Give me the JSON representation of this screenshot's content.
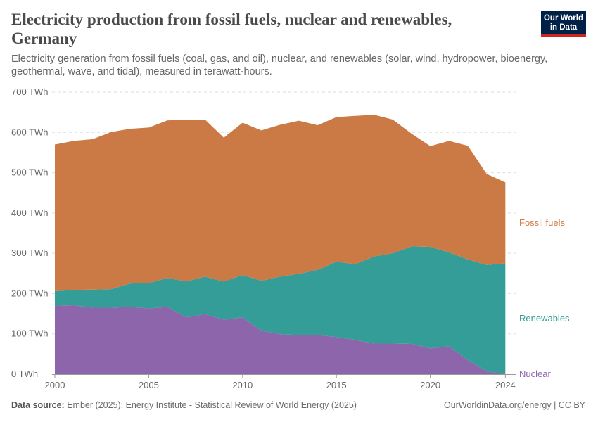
{
  "header": {
    "title": "Electricity production from fossil fuels, nuclear and renewables, Germany",
    "subtitle": "Electricity generation from fossil fuels (coal, gas, and oil), nuclear, and renewables (solar, wind, hydropower, bioenergy, geothermal, wave, and tidal), measured in terawatt-hours."
  },
  "logo": {
    "line1": "Our World",
    "line2": "in Data"
  },
  "footer": {
    "source_label": "Data source:",
    "source_text": "Ember (2025); Energy Institute - Statistical Review of World Energy (2025)",
    "credit": "OurWorldinData.org/energy | CC BY"
  },
  "colors": {
    "nuclear": "#8c65aa",
    "renewables": "#349d97",
    "fossil": "#cc7a45",
    "grid": "#dddddd"
  },
  "chart_data": {
    "type": "area",
    "stacked": true,
    "x": [
      2000,
      2001,
      2002,
      2003,
      2004,
      2005,
      2006,
      2007,
      2008,
      2009,
      2010,
      2011,
      2012,
      2013,
      2014,
      2015,
      2016,
      2017,
      2018,
      2019,
      2020,
      2021,
      2022,
      2023,
      2024
    ],
    "series": [
      {
        "name": "Nuclear",
        "color": "#8c65aa",
        "values": [
          170,
          171,
          165,
          165,
          167,
          163,
          167,
          141,
          149,
          135,
          141,
          108,
          99,
          97,
          97,
          92,
          85,
          76,
          76,
          75,
          64,
          69,
          35,
          7,
          0
        ]
      },
      {
        "name": "Renewables",
        "color": "#349d97",
        "values": [
          36,
          38,
          45,
          46,
          58,
          63,
          72,
          89,
          93,
          95,
          105,
          124,
          143,
          152,
          162,
          187,
          188,
          216,
          224,
          242,
          252,
          233,
          250,
          264,
          275
        ]
      },
      {
        "name": "Fossil fuels",
        "color": "#cc7a45",
        "values": [
          364,
          370,
          373,
          390,
          384,
          386,
          391,
          401,
          390,
          357,
          378,
          373,
          377,
          380,
          359,
          359,
          368,
          352,
          332,
          280,
          250,
          277,
          282,
          226,
          201
        ]
      }
    ],
    "xlim": [
      1999.85,
      2024.55
    ],
    "ylim": [
      0,
      700
    ],
    "y_ticks": [
      0,
      100,
      200,
      300,
      400,
      500,
      600,
      700
    ],
    "y_tick_labels": [
      "0 TWh",
      "100 TWh",
      "200 TWh",
      "300 TWh",
      "400 TWh",
      "500 TWh",
      "600 TWh",
      "700 TWh"
    ],
    "x_ticks": [
      2000,
      2005,
      2010,
      2015,
      2020,
      2024
    ],
    "x_tick_labels": [
      "2000",
      "2005",
      "2010",
      "2015",
      "2020",
      "2024"
    ],
    "grid": true,
    "legend": "right-inline"
  }
}
